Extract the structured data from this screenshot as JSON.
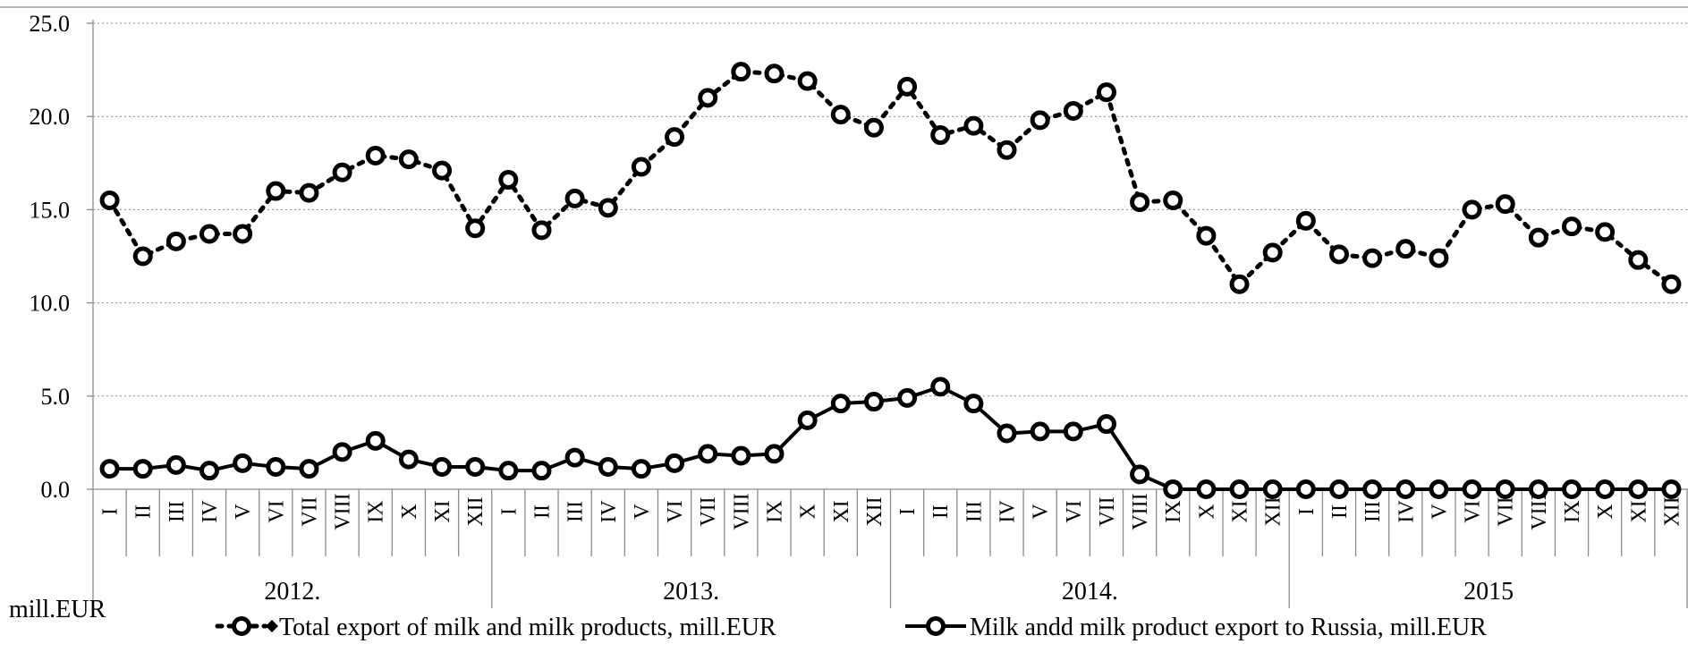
{
  "chart_data": {
    "type": "line",
    "unit_label": "mill.EUR",
    "ylim": [
      0,
      25
    ],
    "yticks": [
      "0.0",
      "5.0",
      "10.0",
      "15.0",
      "20.0",
      "25.0"
    ],
    "grid": true,
    "legend_position": "bottom",
    "months": [
      "I",
      "II",
      "III",
      "IV",
      "V",
      "VI",
      "VII",
      "VIII",
      "IX",
      "X",
      "XI",
      "XII"
    ],
    "years": [
      "2012.",
      "2013.",
      "2014.",
      "2015"
    ],
    "series": [
      {
        "name": "Total export of milk and milk products, mill.EUR",
        "style": "dotted",
        "values": [
          15.5,
          12.5,
          13.3,
          13.7,
          13.7,
          16.0,
          15.9,
          17.0,
          17.9,
          17.7,
          17.1,
          14.0,
          16.6,
          13.9,
          15.6,
          15.1,
          17.3,
          18.9,
          21.0,
          22.4,
          22.3,
          21.9,
          20.1,
          19.4,
          21.6,
          19.0,
          19.5,
          18.2,
          19.8,
          20.3,
          21.3,
          15.4,
          15.5,
          13.6,
          11.0,
          12.7,
          14.4,
          12.6,
          12.4,
          12.9,
          12.4,
          15.0,
          15.3,
          13.5,
          14.1,
          13.8,
          12.3,
          11.0
        ]
      },
      {
        "name": "Milk andd milk product export to Russia, mill.EUR",
        "style": "solid",
        "values": [
          1.1,
          1.1,
          1.3,
          1.0,
          1.4,
          1.2,
          1.1,
          2.0,
          2.6,
          1.6,
          1.2,
          1.2,
          1.0,
          1.0,
          1.7,
          1.2,
          1.1,
          1.4,
          1.9,
          1.8,
          1.9,
          3.7,
          4.6,
          4.7,
          4.9,
          5.5,
          4.6,
          3.0,
          3.1,
          3.1,
          3.5,
          0.8,
          0.0,
          0.0,
          0.0,
          0.0,
          0.0,
          0.0,
          0.0,
          0.0,
          0.0,
          0.0,
          0.0,
          0.0,
          0.0,
          0.0,
          0.0,
          0.0
        ]
      }
    ],
    "colors": {
      "line": "#000000",
      "marker_fill": "#ffffff",
      "grid": "#8c8c8c"
    }
  }
}
